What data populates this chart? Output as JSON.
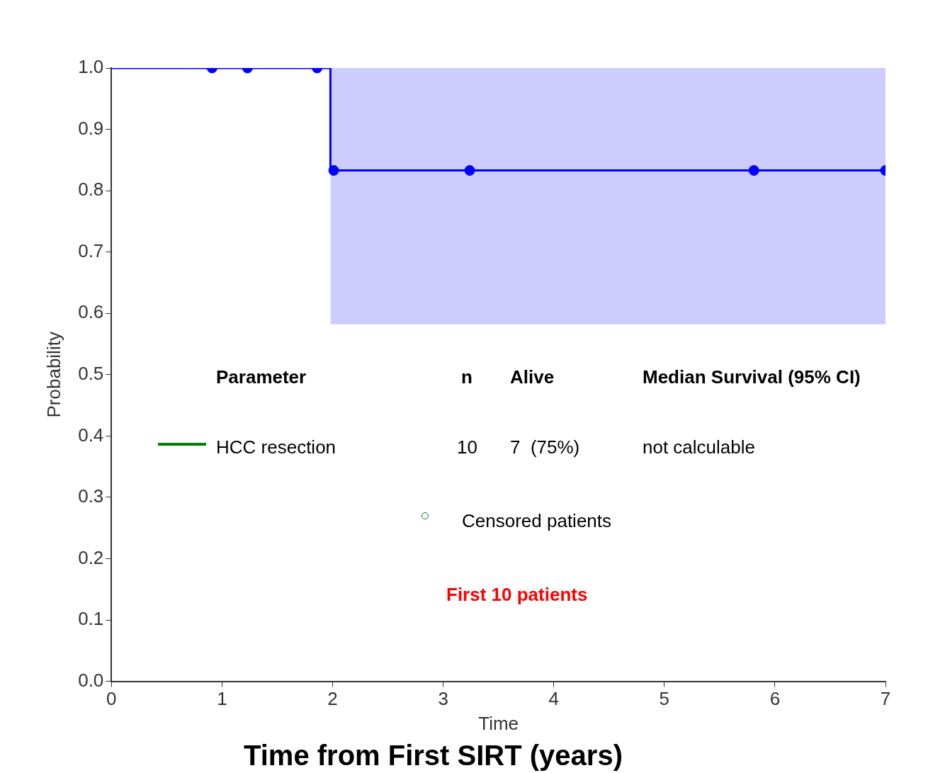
{
  "chart_data": {
    "type": "step",
    "xlabel": "Time",
    "ylabel": "Probability",
    "xlim": [
      0,
      7
    ],
    "xticks": [
      0,
      1,
      2,
      3,
      4,
      5,
      6,
      7
    ],
    "ylim": [
      0,
      1
    ],
    "yticks": [
      {
        "value": 0,
        "label": "0.0"
      },
      {
        "value": 0.1,
        "label": "0.1"
      },
      {
        "value": 0.2,
        "label": "0.2"
      },
      {
        "value": 0.3,
        "label": "0.3"
      },
      {
        "value": 0.4,
        "label": "0.4"
      },
      {
        "value": 0.5,
        "label": "0.5"
      },
      {
        "value": 0.6,
        "label": "0.6"
      },
      {
        "value": 0.7,
        "label": "0.7"
      },
      {
        "value": 0.8,
        "label": "0.8"
      },
      {
        "value": 0.9,
        "label": "0.9"
      },
      {
        "value": 1,
        "label": "1.0"
      }
    ],
    "grid": false,
    "legend": false,
    "series": [
      {
        "color": "#0000ff",
        "marker": "none",
        "x": [
          0,
          1.98,
          7
        ],
        "values": [
          1,
          0.833,
          0.833
        ],
        "lower": [
          null,
          0.582,
          0.582
        ],
        "upper": [
          null,
          1,
          1
        ]
      },
      {
        "type": "scatter",
        "color": "#0000ff",
        "marker": "circle",
        "x": [
          0.91,
          1.23,
          1.86,
          2.01,
          3.24,
          5.81,
          7
        ],
        "values": [
          1,
          1,
          1,
          0.833,
          0.833,
          0.833,
          0.833
        ]
      }
    ],
    "annotations": [
      "Parameter",
      "n",
      "Alive",
      "Median Survival (95% CI)",
      "HCC resection",
      "10",
      "7  (75%)",
      "not calculable",
      "Censored patients",
      "First 10 patients",
      "Time from First SIRT (years)"
    ]
  }
}
